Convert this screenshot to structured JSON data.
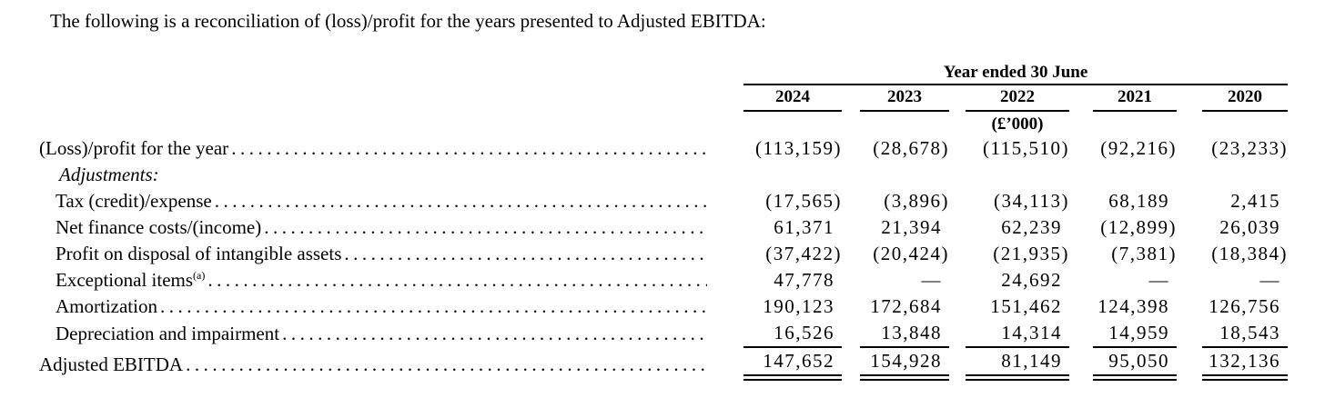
{
  "intro": "The following is a reconciliation of (loss)/profit for the years presented to Adjusted EBITDA:",
  "colors": {
    "text": "#000000",
    "background": "#ffffff",
    "rules": "#000000"
  },
  "table": {
    "period_header": "Year ended 30 June",
    "years": [
      "2024",
      "2023",
      "2022",
      "2021",
      "2020"
    ],
    "unit": "(£’000)",
    "rows": [
      {
        "label": "(Loss)/profit for the year",
        "indent": 0,
        "leaders": true,
        "values": [
          "(113,159)",
          "(28,678)",
          "(115,510)",
          "(92,216)",
          "(23,233)"
        ]
      },
      {
        "label": "Adjustments:",
        "indent": 2,
        "italic": true,
        "leaders": false,
        "values": null
      },
      {
        "label": "Tax (credit)/expense",
        "indent": 1,
        "leaders": true,
        "values": [
          "(17,565)",
          "(3,896)",
          "(34,113)",
          "68,189",
          "2,415"
        ]
      },
      {
        "label": "Net finance costs/(income)",
        "indent": 1,
        "leaders": true,
        "values": [
          "61,371",
          "21,394",
          "62,239",
          "(12,899)",
          "26,039"
        ]
      },
      {
        "label": "Profit on disposal of intangible assets",
        "indent": 1,
        "leaders": true,
        "values": [
          "(37,422)",
          "(20,424)",
          "(21,935)",
          "(7,381)",
          "(18,384)"
        ]
      },
      {
        "label": "Exceptional items",
        "sup": "(a)",
        "indent": 1,
        "leaders": true,
        "values": [
          "47,778",
          "—",
          "24,692",
          "—",
          "—"
        ]
      },
      {
        "label": "Amortization",
        "indent": 1,
        "leaders": true,
        "values": [
          "190,123",
          "172,684",
          "151,462",
          "124,398",
          "126,756"
        ]
      },
      {
        "label": "Depreciation and impairment",
        "indent": 1,
        "leaders": true,
        "rule_below": "single",
        "values": [
          "16,526",
          "13,848",
          "14,314",
          "14,959",
          "18,543"
        ]
      },
      {
        "label": "Adjusted EBITDA",
        "indent": 0,
        "leaders": true,
        "rule_below": "double",
        "values": [
          "147,652",
          "154,928",
          "81,149",
          "95,050",
          "132,136"
        ]
      }
    ]
  }
}
